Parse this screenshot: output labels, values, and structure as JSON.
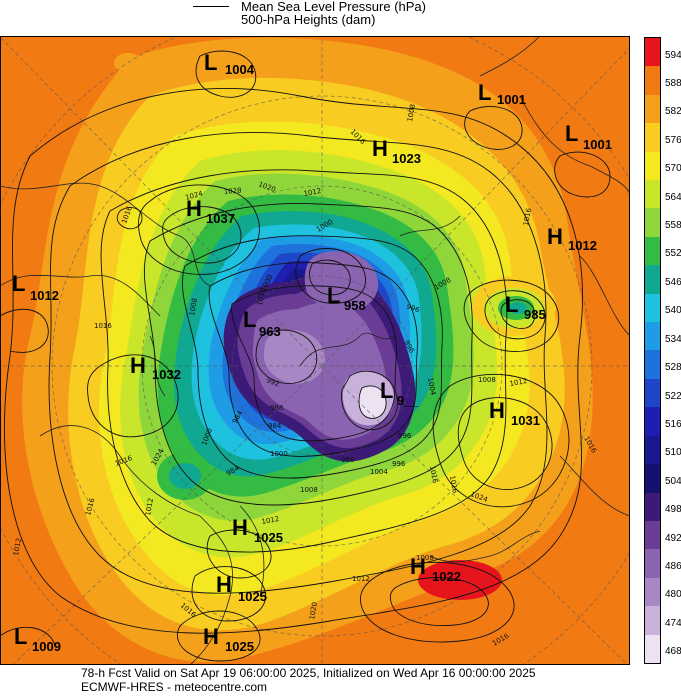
{
  "header": {
    "legend_line1": "Mean Sea Level Pressure (hPa)",
    "legend_line2": "500-hPa Heights (dam)"
  },
  "colorbar": {
    "levels": [
      "594",
      "588",
      "582",
      "576",
      "570",
      "564",
      "558",
      "552",
      "546",
      "540",
      "534",
      "528",
      "522",
      "516",
      "510",
      "504",
      "498",
      "492",
      "486",
      "480",
      "474",
      "468"
    ],
    "colors": [
      "#e8141c",
      "#f27a12",
      "#f5a01a",
      "#f9cc22",
      "#f4e820",
      "#c9e62b",
      "#8fd63a",
      "#33bb44",
      "#10a890",
      "#1ec2de",
      "#1e9de6",
      "#1e72dc",
      "#1e46c8",
      "#1e1eb0",
      "#1a1890",
      "#14126e",
      "#3c1a78",
      "#6a3c96",
      "#8a64b0",
      "#a888c4",
      "#c8b2dc",
      "#ece2f2"
    ]
  },
  "map": {
    "pressure_centres": [
      {
        "type": "L",
        "value": "1004"
      },
      {
        "type": "L",
        "value": "1001"
      },
      {
        "type": "L",
        "value": "1001"
      },
      {
        "type": "H",
        "value": "1023"
      },
      {
        "type": "H",
        "value": "1037"
      },
      {
        "type": "H",
        "value": "1012"
      },
      {
        "type": "L",
        "value": "1012"
      },
      {
        "type": "L",
        "value": "985"
      },
      {
        "type": "H",
        "value": "1032"
      },
      {
        "type": "L",
        "value": "963"
      },
      {
        "type": "L",
        "value": "958"
      },
      {
        "type": "L",
        "value": "9__"
      },
      {
        "type": "H",
        "value": "1031"
      },
      {
        "type": "H",
        "value": "1025"
      },
      {
        "type": "H",
        "value": "1025"
      },
      {
        "type": "H",
        "value": "1022"
      },
      {
        "type": "H",
        "value": "1025"
      },
      {
        "type": "L",
        "value": "1009"
      }
    ],
    "isobar_labels": [
      "1016",
      "1008",
      "1016",
      "1024",
      "1028",
      "1020",
      "1012",
      "1016",
      "1000",
      "1008",
      "1016",
      "1024",
      "1012",
      "1012",
      "1016",
      "1016",
      "1012",
      "1008",
      "1016",
      "1016",
      "1008",
      "1012",
      "1016",
      "1024",
      "1020",
      "1012",
      "1016",
      "1016",
      "1008",
      "1016",
      "1008",
      "996",
      "984",
      "1000",
      "996",
      "1004",
      "992",
      "988",
      "984",
      "968",
      "1000",
      "996",
      "1000",
      "984",
      "1004",
      "996"
    ]
  },
  "footer": {
    "line1": "78-h Fcst Valid on Sat Apr 19 06:00:00 2025, Initialized on Wed Apr 16 00:00:00 2025",
    "line2": "ECMWF-HRES - meteocentre.com"
  }
}
